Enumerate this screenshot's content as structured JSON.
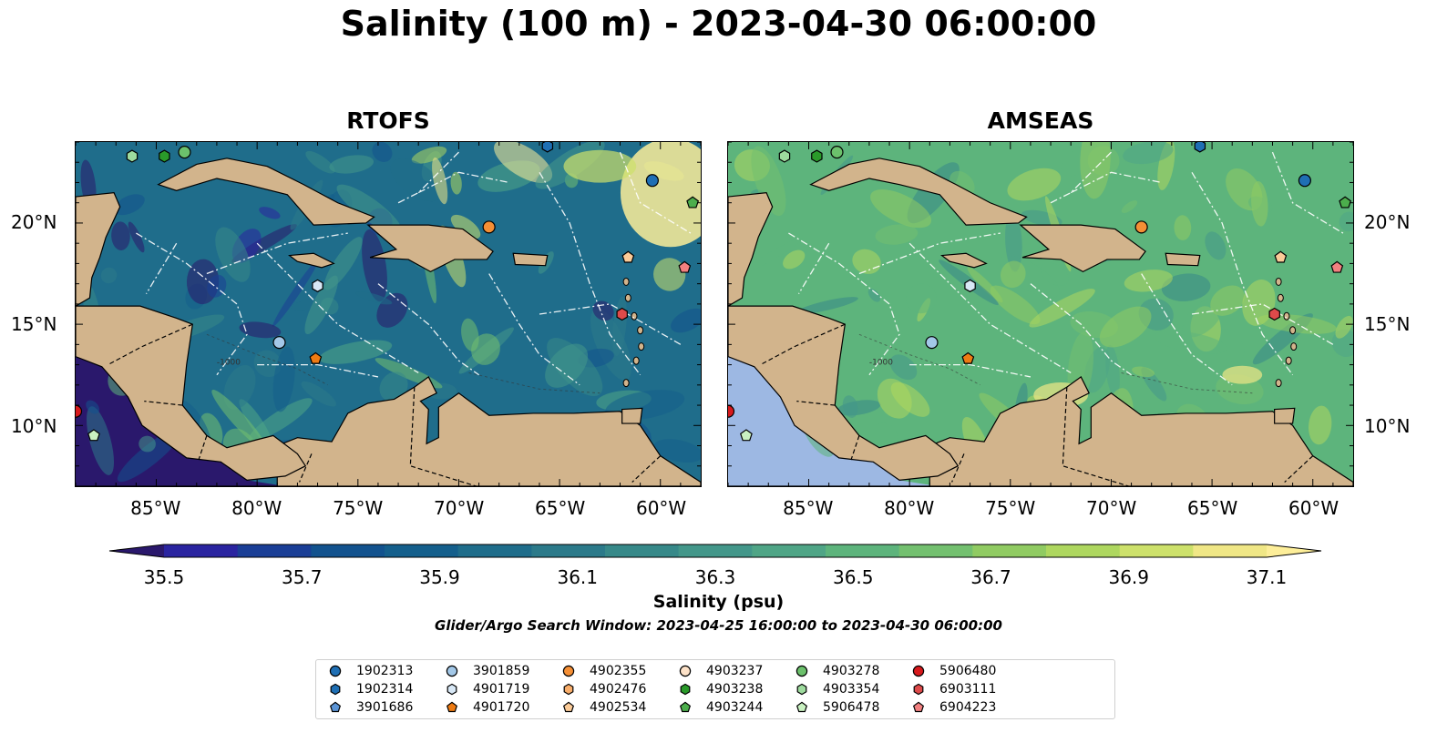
{
  "figure": {
    "title": "Salinity (100 m) - 2023-04-30 06:00:00",
    "search_window": "Glider/Argo Search Window: 2023-04-25 16:00:00 to 2023-04-30 06:00:00"
  },
  "panels": [
    {
      "title": "RTOFS",
      "model": "rtofs"
    },
    {
      "title": "AMSEAS",
      "model": "amseas"
    }
  ],
  "map": {
    "lon_range": [
      -89,
      -58
    ],
    "lat_range": [
      7,
      24
    ],
    "lon_ticks": [
      "85°W",
      "80°W",
      "75°W",
      "70°W",
      "65°W",
      "60°W"
    ],
    "lat_ticks": [
      "20°N",
      "15°N",
      "10°N"
    ],
    "land_color": "#d2b48c",
    "outside_ocean_color": "#9db8e3",
    "coast_color": "#000000",
    "eez_line_color": "#ffffff",
    "isobath_label": "-1000"
  },
  "colorbar": {
    "label": "Salinity (psu)",
    "min": 35.5,
    "max": 37.1,
    "step": 0.1,
    "ticks": [
      "35.5",
      "35.7",
      "35.9",
      "36.1",
      "36.3",
      "36.5",
      "36.7",
      "36.9",
      "37.1"
    ],
    "colormap": "haline",
    "colors": [
      "#2a186c",
      "#2a24a0",
      "#1a3e96",
      "#12528e",
      "#145f8c",
      "#1f6d8b",
      "#2c7a8a",
      "#378989",
      "#43978a",
      "#4fa586",
      "#5db47c",
      "#73c06f",
      "#90cb62",
      "#aed75f",
      "#cde16b",
      "#f0e786",
      "#fdee99"
    ]
  },
  "legend": {
    "items": [
      {
        "id": "1902313",
        "marker": "circle",
        "color": "#1f6fb4"
      },
      {
        "id": "1902314",
        "marker": "hexagon",
        "color": "#1f6fb4"
      },
      {
        "id": "3901686",
        "marker": "pentagon",
        "color": "#5b94d6"
      },
      {
        "id": "3901859",
        "marker": "circle",
        "color": "#a3c8e8"
      },
      {
        "id": "4901719",
        "marker": "hexagon",
        "color": "#d8e8f6"
      },
      {
        "id": "4901720",
        "marker": "pentagon",
        "color": "#ee7b13"
      },
      {
        "id": "4902355",
        "marker": "circle",
        "color": "#f58f35"
      },
      {
        "id": "4902476",
        "marker": "hexagon",
        "color": "#f9ae6b"
      },
      {
        "id": "4902534",
        "marker": "pentagon",
        "color": "#fbcb98"
      },
      {
        "id": "4903237",
        "marker": "circle",
        "color": "#fde2c8"
      },
      {
        "id": "4903238",
        "marker": "hexagon",
        "color": "#2a9a2a"
      },
      {
        "id": "4903244",
        "marker": "pentagon",
        "color": "#4cae4c"
      },
      {
        "id": "4903278",
        "marker": "circle",
        "color": "#6cc16c"
      },
      {
        "id": "4903354",
        "marker": "hexagon",
        "color": "#9edb9e"
      },
      {
        "id": "5906478",
        "marker": "pentagon",
        "color": "#c9f1c1"
      },
      {
        "id": "5906480",
        "marker": "circle",
        "color": "#d7191c"
      },
      {
        "id": "6903111",
        "marker": "hexagon",
        "color": "#de4a4a"
      },
      {
        "id": "6904223",
        "marker": "pentagon",
        "color": "#f28080"
      }
    ]
  },
  "observations": [
    {
      "id": "1902313",
      "lon": -60.4,
      "lat": 22.1
    },
    {
      "id": "1902314",
      "lon": -65.6,
      "lat": 23.8
    },
    {
      "id": "3901859",
      "lon": -78.9,
      "lat": 14.1
    },
    {
      "id": "4901719",
      "lon": -77.0,
      "lat": 16.9
    },
    {
      "id": "4901720",
      "lon": -77.1,
      "lat": 13.3
    },
    {
      "id": "4902355",
      "lon": -68.5,
      "lat": 19.8
    },
    {
      "id": "4902534",
      "lon": -61.6,
      "lat": 18.3
    },
    {
      "id": "4903238",
      "lon": -84.6,
      "lat": 23.3
    },
    {
      "id": "4903244",
      "lon": -58.4,
      "lat": 21.0
    },
    {
      "id": "4903278",
      "lon": -83.6,
      "lat": 23.5
    },
    {
      "id": "4903354",
      "lon": -86.2,
      "lat": 23.3
    },
    {
      "id": "5906478",
      "lon": -88.1,
      "lat": 9.5
    },
    {
      "id": "5906480",
      "lon": -89.0,
      "lat": 10.7
    },
    {
      "id": "6903111",
      "lon": -61.9,
      "lat": 15.5
    },
    {
      "id": "6904223",
      "lon": -58.8,
      "lat": 17.8
    }
  ]
}
